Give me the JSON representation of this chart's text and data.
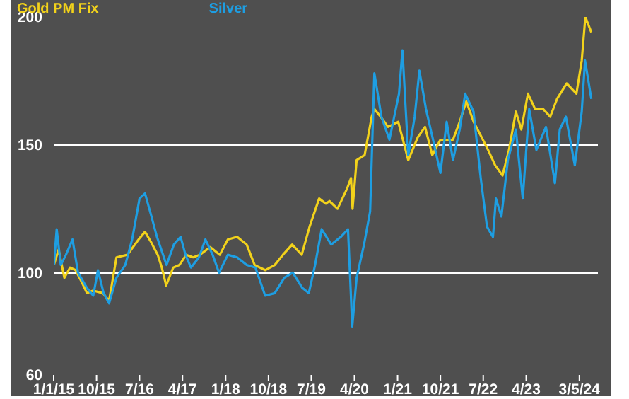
{
  "chart_data": {
    "type": "line",
    "legend": "top left",
    "marker": "none",
    "line_style": "solid",
    "xlim": [
      "2015-01-01",
      "2024-07-01"
    ],
    "xticks": [
      {
        "value": "2015-01-01",
        "label": "1/1/15"
      },
      {
        "value": "2015-10-01",
        "label": "10/15"
      },
      {
        "value": "2016-07-01",
        "label": "7/16"
      },
      {
        "value": "2017-04-01",
        "label": "4/17"
      },
      {
        "value": "2018-01-01",
        "label": "1/18"
      },
      {
        "value": "2018-10-01",
        "label": "10/18"
      },
      {
        "value": "2019-07-01",
        "label": "7/19"
      },
      {
        "value": "2020-04-01",
        "label": "4/20"
      },
      {
        "value": "2021-01-01",
        "label": "1/21"
      },
      {
        "value": "2021-10-01",
        "label": "10/21"
      },
      {
        "value": "2022-07-01",
        "label": "7/22"
      },
      {
        "value": "2023-04-01",
        "label": "4/23"
      },
      {
        "value": "2024-03-05",
        "label": "3/5/24"
      }
    ],
    "ylim": [
      60,
      200
    ],
    "yticks": [
      60,
      100,
      150,
      200
    ],
    "ref_lines": [
      {
        "axis": "y",
        "value": 100,
        "color": "#ffffff"
      },
      {
        "axis": "y",
        "value": 150,
        "color": "#ffffff"
      }
    ],
    "series": [
      {
        "name": "Gold PM Fix",
        "color": "#f2d21b",
        "x": [
          "2015-01-02",
          "2015-02-01",
          "2015-03-10",
          "2015-04-15",
          "2015-05-20",
          "2015-07-01",
          "2015-08-01",
          "2015-09-10",
          "2015-11-10",
          "2015-12-20",
          "2016-02-05",
          "2016-04-15",
          "2016-06-25",
          "2016-08-05",
          "2016-09-12",
          "2016-10-25",
          "2016-11-20",
          "2016-12-18",
          "2017-02-01",
          "2017-03-12",
          "2017-04-25",
          "2017-06-08",
          "2017-07-20",
          "2017-09-25",
          "2017-11-25",
          "2018-01-15",
          "2018-03-15",
          "2018-05-15",
          "2018-07-05",
          "2018-09-10",
          "2018-11-10",
          "2019-01-01",
          "2019-03-01",
          "2019-05-01",
          "2019-06-20",
          "2019-08-20",
          "2019-10-01",
          "2019-10-25",
          "2019-12-15",
          "2020-02-15",
          "2020-03-10",
          "2020-03-20",
          "2020-04-15",
          "2020-06-05",
          "2020-07-20",
          "2020-08-06",
          "2020-09-15",
          "2020-11-01",
          "2021-01-05",
          "2021-03-10",
          "2021-05-10",
          "2021-06-25",
          "2021-08-10",
          "2021-10-01",
          "2021-12-20",
          "2022-02-01",
          "2022-03-15",
          "2022-05-01",
          "2022-06-12",
          "2022-08-01",
          "2022-09-15",
          "2022-11-01",
          "2022-12-12",
          "2023-01-25",
          "2023-03-01",
          "2023-04-12",
          "2023-05-28",
          "2023-07-18",
          "2023-09-01",
          "2023-10-15",
          "2023-12-15",
          "2024-02-15",
          "2024-03-20",
          "2024-04-12",
          "2024-05-20"
        ],
        "values": [
          103,
          109,
          98,
          102,
          101,
          96,
          92,
          93,
          92,
          89,
          106,
          107,
          113,
          116,
          112,
          107,
          102,
          95,
          102,
          103,
          107,
          106,
          107,
          110,
          107,
          113,
          114,
          111,
          103,
          101,
          103,
          107,
          111,
          107,
          118,
          129,
          127,
          128,
          125,
          133,
          137,
          125,
          144,
          146,
          161,
          164,
          161,
          157,
          159,
          144,
          153,
          157,
          146,
          152,
          152,
          159,
          167,
          159,
          154,
          148,
          142,
          138,
          148,
          163,
          156,
          170,
          164,
          164,
          161,
          168,
          174,
          170,
          183,
          200,
          194
        ]
      },
      {
        "name": "Silver",
        "color": "#1e9ee2",
        "x": [
          "2015-01-02",
          "2015-01-20",
          "2015-02-15",
          "2015-03-20",
          "2015-05-01",
          "2015-06-05",
          "2015-08-01",
          "2015-09-10",
          "2015-10-10",
          "2015-11-15",
          "2015-12-20",
          "2016-02-05",
          "2016-04-01",
          "2016-05-15",
          "2016-07-01",
          "2016-08-05",
          "2016-09-15",
          "2016-10-20",
          "2016-12-20",
          "2017-02-05",
          "2017-03-20",
          "2017-04-20",
          "2017-05-25",
          "2017-07-15",
          "2017-08-25",
          "2017-10-10",
          "2017-11-20",
          "2018-01-15",
          "2018-03-15",
          "2018-05-15",
          "2018-07-10",
          "2018-09-10",
          "2018-11-10",
          "2019-01-10",
          "2019-03-05",
          "2019-05-05",
          "2019-06-15",
          "2019-07-25",
          "2019-09-05",
          "2019-11-05",
          "2020-01-05",
          "2020-02-20",
          "2020-03-18",
          "2020-04-15",
          "2020-06-01",
          "2020-07-10",
          "2020-08-06",
          "2020-09-20",
          "2020-11-10",
          "2021-01-10",
          "2021-02-01",
          "2021-03-10",
          "2021-04-20",
          "2021-05-20",
          "2021-07-01",
          "2021-08-15",
          "2021-10-01",
          "2021-11-10",
          "2021-12-20",
          "2022-02-01",
          "2022-03-08",
          "2022-04-30",
          "2022-06-15",
          "2022-07-25",
          "2022-09-01",
          "2022-09-20",
          "2022-10-25",
          "2022-12-05",
          "2023-01-25",
          "2023-03-10",
          "2023-04-20",
          "2023-06-05",
          "2023-08-05",
          "2023-10-01",
          "2023-11-01",
          "2023-12-10",
          "2024-02-05",
          "2024-03-20",
          "2024-04-10",
          "2024-05-20"
        ],
        "values": [
          103,
          117,
          103,
          107,
          113,
          100,
          94,
          91,
          101,
          92,
          88,
          98,
          103,
          113,
          129,
          131,
          122,
          114,
          103,
          111,
          114,
          107,
          102,
          106,
          113,
          107,
          100,
          107,
          106,
          103,
          102,
          91,
          92,
          98,
          100,
          94,
          92,
          103,
          117,
          111,
          114,
          117,
          79,
          98,
          111,
          124,
          178,
          161,
          152,
          170,
          187,
          146,
          161,
          179,
          164,
          152,
          139,
          159,
          144,
          156,
          170,
          163,
          137,
          118,
          114,
          129,
          122,
          144,
          156,
          129,
          164,
          148,
          157,
          135,
          156,
          161,
          142,
          163,
          183,
          168
        ]
      }
    ]
  }
}
